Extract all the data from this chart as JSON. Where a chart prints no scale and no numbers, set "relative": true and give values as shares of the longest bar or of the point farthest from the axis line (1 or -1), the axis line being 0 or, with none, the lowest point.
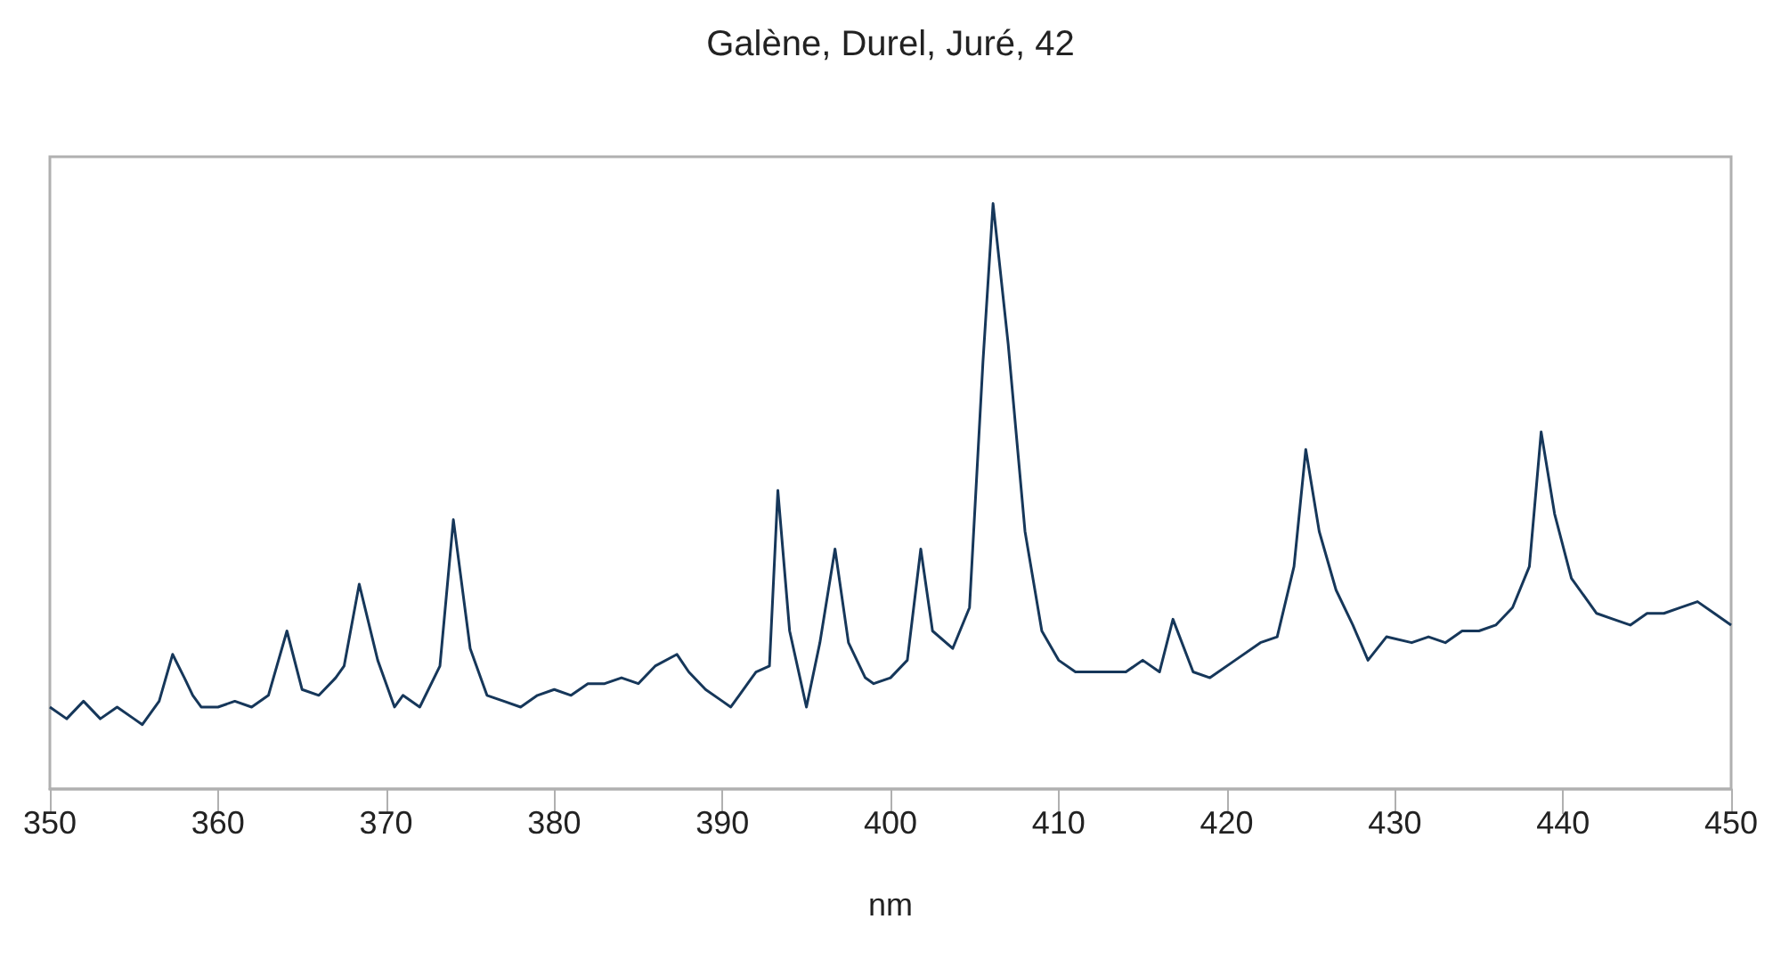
{
  "chart_data": {
    "type": "line",
    "title": "Galène, Durel, Juré, 42",
    "xlabel": "nm",
    "relative": true,
    "tick_labels": "x",
    "grid": false,
    "marker": "none",
    "line_style": "solid",
    "xlim": [
      350,
      450
    ],
    "xticks": [
      350,
      360,
      370,
      380,
      390,
      400,
      410,
      420,
      430,
      440,
      450
    ],
    "series": [
      {
        "color": "#16375a",
        "x": [
          350,
          351,
          352,
          353,
          354,
          355,
          355.5,
          356.5,
          357.3,
          358,
          358.5,
          359,
          360,
          361,
          362,
          363,
          364.1,
          365,
          366,
          367,
          367.5,
          368.4,
          369.5,
          370.5,
          371,
          372,
          373.2,
          374,
          375,
          376,
          377,
          378,
          379,
          380,
          381,
          382,
          383,
          384,
          385,
          386,
          387.3,
          388,
          389,
          390,
          390.5,
          391,
          392,
          392.8,
          393.3,
          394,
          395,
          395.8,
          396.7,
          397.5,
          398.5,
          399,
          400,
          401,
          401.8,
          402.5,
          403.7,
          404.7,
          405.5,
          406.1,
          407,
          408,
          409,
          410,
          411,
          412,
          413,
          414,
          415,
          416,
          416.8,
          418,
          419,
          420.5,
          422,
          423,
          424,
          424.7,
          425.5,
          426.5,
          427.5,
          428.4,
          429.5,
          431,
          432,
          433,
          434,
          435,
          436,
          437,
          438,
          438.7,
          439.5,
          440.5,
          442,
          443,
          444,
          445,
          446,
          447,
          448,
          449,
          450
        ],
        "values": [
          0.14,
          0.12,
          0.15,
          0.12,
          0.14,
          0.12,
          0.11,
          0.15,
          0.23,
          0.19,
          0.16,
          0.14,
          0.14,
          0.15,
          0.14,
          0.16,
          0.27,
          0.17,
          0.16,
          0.19,
          0.21,
          0.35,
          0.22,
          0.14,
          0.16,
          0.14,
          0.21,
          0.46,
          0.24,
          0.16,
          0.15,
          0.14,
          0.16,
          0.17,
          0.16,
          0.18,
          0.18,
          0.19,
          0.18,
          0.21,
          0.23,
          0.2,
          0.17,
          0.15,
          0.14,
          0.16,
          0.2,
          0.21,
          0.51,
          0.27,
          0.14,
          0.25,
          0.41,
          0.25,
          0.19,
          0.18,
          0.19,
          0.22,
          0.41,
          0.27,
          0.24,
          0.31,
          0.73,
          1.0,
          0.76,
          0.44,
          0.27,
          0.22,
          0.2,
          0.2,
          0.2,
          0.2,
          0.22,
          0.2,
          0.29,
          0.2,
          0.19,
          0.22,
          0.25,
          0.26,
          0.38,
          0.58,
          0.44,
          0.34,
          0.28,
          0.22,
          0.26,
          0.25,
          0.26,
          0.25,
          0.27,
          0.27,
          0.28,
          0.31,
          0.38,
          0.61,
          0.47,
          0.36,
          0.3,
          0.29,
          0.28,
          0.3,
          0.3,
          0.31,
          0.32,
          0.3,
          0.28
        ]
      }
    ]
  }
}
